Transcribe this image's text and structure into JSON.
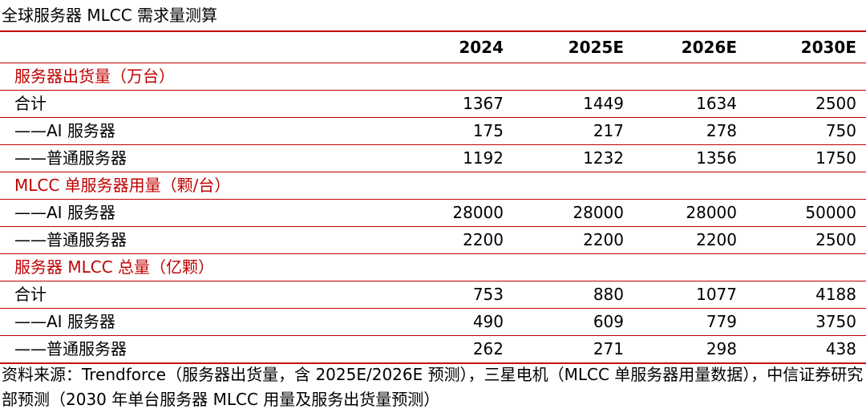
{
  "title": "全球服务器 MLCC 需求量测算",
  "columns": [
    "",
    "2024",
    "2025E",
    "2026E",
    "2030E"
  ],
  "sections": [
    {
      "heading": "服务器出货量（万台）",
      "rows": [
        {
          "label": "合计",
          "values": [
            "1367",
            "1449",
            "1634",
            "2500"
          ]
        },
        {
          "label": "——AI 服务器",
          "values": [
            "175",
            "217",
            "278",
            "750"
          ]
        },
        {
          "label": "——普通服务器",
          "values": [
            "1192",
            "1232",
            "1356",
            "1750"
          ]
        }
      ]
    },
    {
      "heading": "MLCC 单服务器用量（颗/台）",
      "rows": [
        {
          "label": "——AI 服务器",
          "values": [
            "28000",
            "28000",
            "28000",
            "50000"
          ]
        },
        {
          "label": "——普通服务器",
          "values": [
            "2200",
            "2200",
            "2200",
            "2500"
          ]
        }
      ]
    },
    {
      "heading": "服务器 MLCC 总量（亿颗）",
      "rows": [
        {
          "label": "合计",
          "values": [
            "753",
            "880",
            "1077",
            "4188"
          ]
        },
        {
          "label": "——AI 服务器",
          "values": [
            "490",
            "609",
            "779",
            "3750"
          ]
        },
        {
          "label": "——普通服务器",
          "values": [
            "262",
            "271",
            "298",
            "438"
          ]
        }
      ]
    }
  ],
  "source": "资料来源：Trendforce（服务器出货量，含 2025E/2026E 预测），三星电机（MLCC 单服务器用量数据），中信证券研究部预测（2030 年单台服务器 MLCC 用量及服务出货量预测）",
  "colors": {
    "accent_red": "#c00000",
    "text": "#000000",
    "background": "#ffffff"
  }
}
